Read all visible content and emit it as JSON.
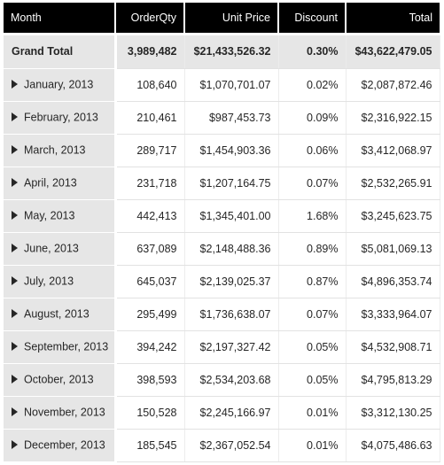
{
  "columns": {
    "month": "Month",
    "order_qty": "OrderQty",
    "unit_price": "Unit Price",
    "discount": "Discount",
    "total": "Total"
  },
  "grand_total": {
    "label": "Grand Total",
    "order_qty": "3,989,482",
    "unit_price": "$21,433,526.32",
    "discount": "0.30%",
    "total": "$43,622,479.05"
  },
  "rows": [
    {
      "month": "January, 2013",
      "order_qty": "108,640",
      "unit_price": "$1,070,701.07",
      "discount": "0.02%",
      "total": "$2,087,872.46"
    },
    {
      "month": "February, 2013",
      "order_qty": "210,461",
      "unit_price": "$987,453.73",
      "discount": "0.09%",
      "total": "$2,316,922.15"
    },
    {
      "month": "March, 2013",
      "order_qty": "289,717",
      "unit_price": "$1,454,903.36",
      "discount": "0.06%",
      "total": "$3,412,068.97"
    },
    {
      "month": "April, 2013",
      "order_qty": "231,718",
      "unit_price": "$1,207,164.75",
      "discount": "0.07%",
      "total": "$2,532,265.91"
    },
    {
      "month": "May, 2013",
      "order_qty": "442,413",
      "unit_price": "$1,345,401.00",
      "discount": "1.68%",
      "total": "$3,245,623.75"
    },
    {
      "month": "June, 2013",
      "order_qty": "637,089",
      "unit_price": "$2,148,488.36",
      "discount": "0.89%",
      "total": "$5,081,069.13"
    },
    {
      "month": "July, 2013",
      "order_qty": "645,037",
      "unit_price": "$2,139,025.37",
      "discount": "0.87%",
      "total": "$4,896,353.74"
    },
    {
      "month": "August, 2013",
      "order_qty": "295,499",
      "unit_price": "$1,736,638.07",
      "discount": "0.07%",
      "total": "$3,333,964.07"
    },
    {
      "month": "September, 2013",
      "order_qty": "394,242",
      "unit_price": "$2,197,327.42",
      "discount": "0.05%",
      "total": "$4,532,908.71"
    },
    {
      "month": "October, 2013",
      "order_qty": "398,593",
      "unit_price": "$2,534,203.68",
      "discount": "0.05%",
      "total": "$4,795,813.29"
    },
    {
      "month": "November, 2013",
      "order_qty": "150,528",
      "unit_price": "$2,245,166.97",
      "discount": "0.01%",
      "total": "$3,312,130.25"
    },
    {
      "month": "December, 2013",
      "order_qty": "185,545",
      "unit_price": "$2,367,052.54",
      "discount": "0.01%",
      "total": "$4,075,486.63"
    }
  ]
}
